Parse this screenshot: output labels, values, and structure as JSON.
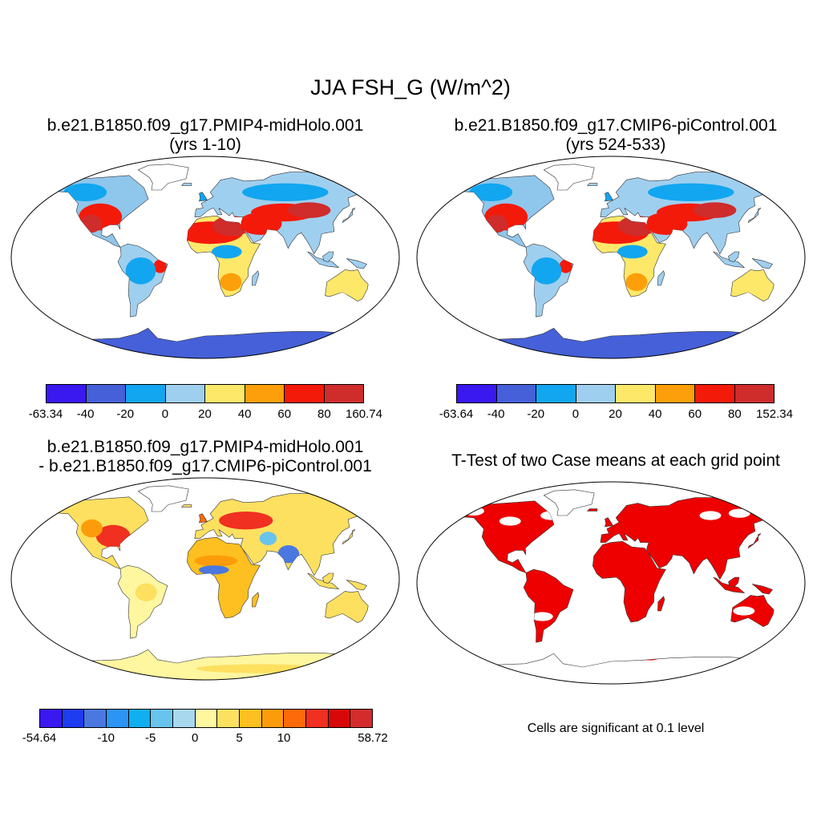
{
  "main_title": "JJA FSH_G (W/m^2)",
  "panels": [
    {
      "title_line1": "b.e21.B1850.f09_g17.PMIP4-midHolo.001",
      "title_line2": "(yrs 1-10)",
      "colorbar": {
        "colors": [
          "#3a18f0",
          "#4560d8",
          "#12a6f0",
          "#9fcfef",
          "#fde86a",
          "#fd9f0a",
          "#f41a0a",
          "#cf2c2c"
        ],
        "labels": [
          "-63.34",
          "-40",
          "-20",
          "0",
          "20",
          "40",
          "60",
          "80",
          "160.74"
        ]
      }
    },
    {
      "title_line1": "b.e21.B1850.f09_g17.CMIP6-piControl.001",
      "title_line2": "(yrs 524-533)",
      "colorbar": {
        "colors": [
          "#3a18f0",
          "#4560d8",
          "#12a6f0",
          "#9fcfef",
          "#fde86a",
          "#fd9f0a",
          "#f41a0a",
          "#cf2c2c"
        ],
        "labels": [
          "-63.64",
          "-40",
          "-20",
          "0",
          "20",
          "40",
          "60",
          "80",
          "152.34"
        ]
      }
    },
    {
      "title_line1": "b.e21.B1850.f09_g17.PMIP4-midHolo.001",
      "title_line2": "- b.e21.B1850.f09_g17.CMIP6-piControl.001",
      "colorbar": {
        "colors": [
          "#3a18f0",
          "#1e3cf0",
          "#4a78e0",
          "#2c94f4",
          "#10b0f0",
          "#68c4ec",
          "#a8d8ee",
          "#fff6a0",
          "#fde060",
          "#fdc020",
          "#fd9c0a",
          "#fd6a0a",
          "#f03020",
          "#d80808",
          "#d42c2c"
        ],
        "labels": [
          "-54.64",
          "",
          "",
          "-10",
          "",
          "-5",
          "",
          "0",
          "",
          "5",
          "",
          "10",
          "",
          "",
          "",
          "58.72"
        ]
      }
    },
    {
      "title_line1": "T-Test of two Case means at each grid point",
      "note": "Cells are significant at 0.1 level"
    }
  ]
}
